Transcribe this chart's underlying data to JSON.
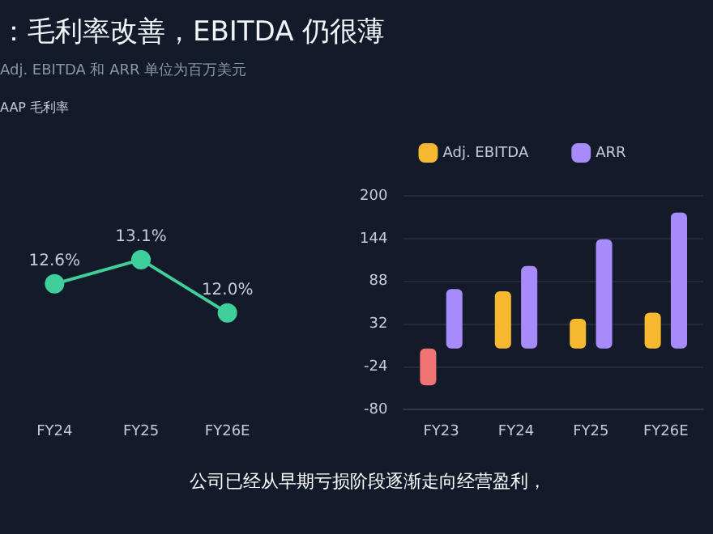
{
  "chart_data": [
    {
      "type": "line",
      "title": "：毛利率改善，EBITDA 仍很薄",
      "subtitle": "Adj. EBITDA 和 ARR 单位为百万美元",
      "annotations": [
        "AAP 毛利率"
      ],
      "categories": [
        "FY24",
        "FY25",
        "FY26E"
      ],
      "series": [
        {
          "color": "#3ecf9a",
          "values": [
            12.6,
            13.1,
            12.0
          ],
          "value_labels": [
            "12.6%",
            "13.1%",
            "12.0%"
          ]
        }
      ],
      "marker": "circle",
      "legend": false,
      "tick_labels": "x",
      "grid": false
    },
    {
      "type": "bar",
      "categories": [
        "FY23",
        "FY24",
        "FY25",
        "FY26E"
      ],
      "series": [
        {
          "name": "Adj. EBITDA",
          "color": "#f5b82e",
          "colors": [
            "#f07272",
            "#f5b82e",
            "#f5b82e",
            "#f5b82e"
          ],
          "values": [
            -48,
            75,
            39,
            47
          ]
        },
        {
          "name": "ARR",
          "color": "#a78bfa",
          "values": [
            78,
            108,
            143,
            178
          ]
        }
      ],
      "ylim": [
        -80,
        200
      ],
      "yticks": [
        -80,
        -24,
        32,
        88,
        144,
        200
      ],
      "grid": "y",
      "legend": "top",
      "annotations": [
        "公司已经从早期亏损阶段逐渐走向经营盈利，"
      ]
    }
  ]
}
